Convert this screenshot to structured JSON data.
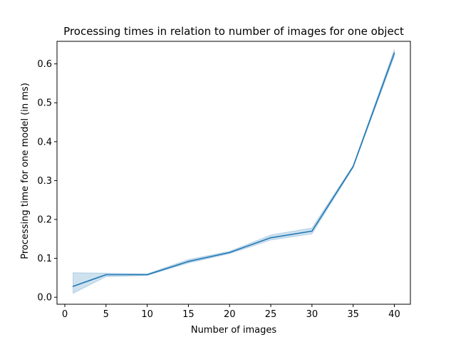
{
  "chart_data": {
    "type": "line",
    "title": "Processing times in relation to number of images for one object",
    "xlabel": "Number of images",
    "ylabel": "Processing time for one model (in ms)",
    "xlim": [
      -0.95,
      41.95
    ],
    "ylim": [
      -0.018,
      0.658
    ],
    "x_ticks": [
      0,
      5,
      10,
      15,
      20,
      25,
      30,
      35,
      40
    ],
    "x_tick_labels": [
      "0",
      "5",
      "10",
      "15",
      "20",
      "25",
      "30",
      "35",
      "40"
    ],
    "y_ticks": [
      0.0,
      0.1,
      0.2,
      0.3,
      0.4,
      0.5,
      0.6
    ],
    "y_tick_labels": [
      "0.0",
      "0.1",
      "0.2",
      "0.3",
      "0.4",
      "0.5",
      "0.6"
    ],
    "grid": false,
    "colors": {
      "line": "#1f77b4",
      "band": "#1f77b4",
      "axes": "#000000"
    },
    "series": [
      {
        "x": [
          1,
          5,
          10,
          15,
          20,
          25,
          30,
          35,
          40
        ],
        "values": [
          0.028,
          0.058,
          0.058,
          0.092,
          0.115,
          0.153,
          0.17,
          0.336,
          0.628
        ],
        "ci_low": [
          0.01,
          0.053,
          0.056,
          0.088,
          0.112,
          0.147,
          0.163,
          0.333,
          0.62
        ],
        "ci_high": [
          0.063,
          0.062,
          0.06,
          0.097,
          0.118,
          0.16,
          0.178,
          0.339,
          0.637
        ]
      }
    ]
  }
}
